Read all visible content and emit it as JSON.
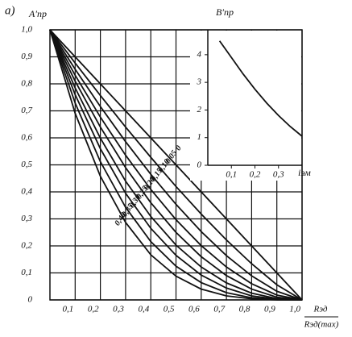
{
  "panel_label": "a)",
  "chart_data": [
    {
      "type": "line",
      "ylabel": "A′пр",
      "xlabel": "Rэд",
      "xlabel_denominator": "Rэд(max)",
      "x": [
        0,
        0.1,
        0.2,
        0.3,
        0.4,
        0.5,
        0.6,
        0.7,
        0.8,
        0.9,
        1.0
      ],
      "xlim": [
        0,
        1.0
      ],
      "ylim": [
        0,
        1.0
      ],
      "grid": true,
      "xticks": [
        {
          "value": 0.1,
          "label": "0,1"
        },
        {
          "value": 0.2,
          "label": "0,2"
        },
        {
          "value": 0.3,
          "label": "0,3"
        },
        {
          "value": 0.4,
          "label": "0,4"
        },
        {
          "value": 0.5,
          "label": "0,5"
        },
        {
          "value": 0.6,
          "label": "0,6"
        },
        {
          "value": 0.7,
          "label": "0,7"
        },
        {
          "value": 0.8,
          "label": "0,8"
        },
        {
          "value": 0.9,
          "label": "0,9"
        },
        {
          "value": 1.0,
          "label": "1,0"
        }
      ],
      "yticks": [
        0,
        {
          "value": 0.1,
          "label": "0,1"
        },
        {
          "value": 0.2,
          "label": "0,2"
        },
        {
          "value": 0.3,
          "label": "0,3"
        },
        {
          "value": 0.4,
          "label": "0,4"
        },
        {
          "value": 0.5,
          "label": "0,5"
        },
        {
          "value": 0.6,
          "label": "0,6"
        },
        {
          "value": 0.7,
          "label": "0,7"
        },
        {
          "value": 0.8,
          "label": "0,8"
        },
        {
          "value": 0.9,
          "label": "0,9"
        },
        {
          "value": 1.0,
          "label": "1,0"
        }
      ],
      "series": [
        {
          "name": "0",
          "color": "#111",
          "values": [
            1,
            0.9,
            0.8,
            0.7,
            0.6,
            0.5,
            0.4,
            0.3,
            0.2,
            0.1,
            0
          ]
        },
        {
          "name": "0,05",
          "color": "#111",
          "values": [
            1,
            0.877,
            0.757,
            0.64,
            0.528,
            0.42,
            0.318,
            0.222,
            0.134,
            0.056,
            0
          ]
        },
        {
          "name": "0,10",
          "color": "#111",
          "values": [
            1,
            0.854,
            0.716,
            0.586,
            0.465,
            0.354,
            0.253,
            0.164,
            0.089,
            0.032,
            0
          ]
        },
        {
          "name": "0,15",
          "color": "#111",
          "values": [
            1,
            0.832,
            0.677,
            0.536,
            0.409,
            0.297,
            0.201,
            0.122,
            0.06,
            0.018,
            0
          ]
        },
        {
          "name": "0,20",
          "color": "#111",
          "values": [
            1,
            0.81,
            0.64,
            0.49,
            0.36,
            0.25,
            0.16,
            0.09,
            0.04,
            0.01,
            0
          ]
        },
        {
          "name": "0,25",
          "color": "#111",
          "values": [
            1,
            0.785,
            0.599,
            0.44,
            0.309,
            0.203,
            0.122,
            0.063,
            0.025,
            0.005,
            0
          ]
        },
        {
          "name": "0,30",
          "color": "#111",
          "values": [
            1,
            0.76,
            0.56,
            0.395,
            0.265,
            0.165,
            0.092,
            0.044,
            0.015,
            0.003,
            0
          ]
        },
        {
          "name": "0,35",
          "color": "#111",
          "values": [
            1,
            0.729,
            0.512,
            0.343,
            0.216,
            0.125,
            0.064,
            0.027,
            0.008,
            0.001,
            0
          ]
        },
        {
          "name": "0,40",
          "color": "#111",
          "values": [
            1,
            0.691,
            0.458,
            0.287,
            0.167,
            0.088,
            0.04,
            0.015,
            0.004,
            0,
            0
          ]
        }
      ]
    },
    {
      "type": "line",
      "ylabel": "B′пр",
      "xlabel": "iэм",
      "x": [
        0.05,
        0.1,
        0.15,
        0.2,
        0.25,
        0.3,
        0.35,
        0.4
      ],
      "xlim": [
        0,
        0.4
      ],
      "ylim": [
        0,
        4.9
      ],
      "xticks": [
        {
          "value": 0.1,
          "label": "0,1"
        },
        {
          "value": 0.2,
          "label": "0,2"
        },
        {
          "value": 0.3,
          "label": "0,3"
        }
      ],
      "yticks": [
        0,
        1,
        2,
        3,
        4
      ],
      "series": [
        {
          "color": "#111",
          "values": [
            4.5,
            3.9,
            3.3,
            2.75,
            2.25,
            1.8,
            1.4,
            1.05
          ]
        }
      ]
    }
  ]
}
